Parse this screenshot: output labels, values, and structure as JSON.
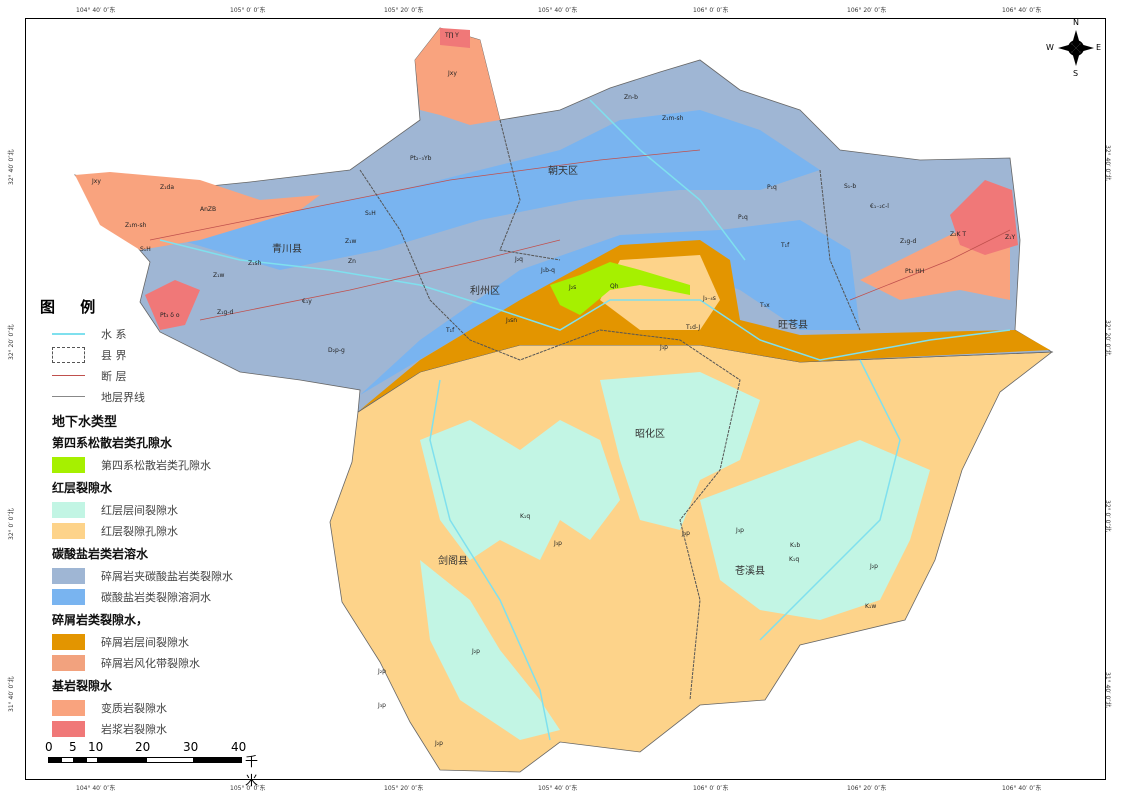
{
  "coords": {
    "longitudes": [
      "104° 40′ 0″东",
      "105° 0′ 0″东",
      "105° 20′ 0″东",
      "105° 40′ 0″东",
      "106° 0′ 0″东",
      "106° 20′ 0″东",
      "106° 40′ 0″东"
    ],
    "latitudes": [
      "32° 40′ 0″北",
      "32° 20′ 0″北",
      "32° 0′ 0″北",
      "31° 40′ 0″北"
    ]
  },
  "places": [
    "青川县",
    "朝天区",
    "利州区",
    "旺苍县",
    "昭化区",
    "剑阁县",
    "苍溪县"
  ],
  "geo_labels": [
    "T∏ Y",
    "Jxy",
    "Pt₂₋₃Yb",
    "Jxy",
    "Z₁da",
    "AnZB",
    "Z₁m-sh",
    "S₁H",
    "S₁H",
    "Z₁w",
    "Zn",
    "Z₁sh",
    "Z₁w",
    "Z₁g-d",
    "Pt₃ δ o",
    "€₁y",
    "D₂p-g",
    "Zn-b",
    "Z₁m-sh",
    "P₁q",
    "P₁q",
    "S₁-b",
    "€₁₋₂c-l",
    "Z₁g-d",
    "Z₂K T",
    "Z₁Y",
    "Pt₃ HH",
    "T₁f",
    "T₁f",
    "J₂q",
    "J₁b-q",
    "J₂s",
    "Qh",
    "J₃₋₄s",
    "T₃x",
    "T₁d-J",
    "J₃sn",
    "J₃p",
    "K₁q",
    "J₃p",
    "J₃p",
    "K₁b",
    "K₁q",
    "J₃p",
    "K₁w",
    "J₂p",
    "J₂p",
    "J₂p",
    "J₃p",
    "J₂p"
  ],
  "compass": {
    "n": "N",
    "s": "S",
    "e": "E",
    "w": "W"
  },
  "legend": {
    "title": "图 例",
    "lines": [
      {
        "label": "水 系",
        "color": "#7fe0ee"
      },
      {
        "label": "县 界",
        "color": "#555"
      },
      {
        "label": "断 层",
        "color": "#c0504d"
      },
      {
        "label": "地层界线",
        "color": "#888"
      }
    ],
    "groundwater_title": "地下水类型",
    "groups": [
      {
        "title": "第四系松散岩类孔隙水",
        "items": [
          {
            "label": "第四系松散岩类孔隙水",
            "color": "#a6f000"
          }
        ]
      },
      {
        "title": "红层裂隙水",
        "items": [
          {
            "label": "红层层间裂隙水",
            "color": "#c2f5e4"
          },
          {
            "label": "红层裂隙孔隙水",
            "color": "#fdd38a"
          }
        ]
      },
      {
        "title": "碳酸盐岩类岩溶水",
        "items": [
          {
            "label": "碎屑岩夹碳酸盐岩类裂隙水",
            "color": "#9fb6d4"
          },
          {
            "label": "碳酸盐岩类裂隙溶洞水",
            "color": "#79b4f0"
          }
        ]
      },
      {
        "title": "碎屑岩类裂隙水，",
        "items": [
          {
            "label": "碎屑岩层间裂隙水",
            "color": "#e39500"
          },
          {
            "label": "碎屑岩风化带裂隙水",
            "color": "#f2a27e"
          }
        ]
      },
      {
        "title": "基岩裂隙水",
        "items": [
          {
            "label": "变质岩裂隙水",
            "color": "#f9a37e"
          },
          {
            "label": "岩浆岩裂隙水",
            "color": "#f07878"
          }
        ]
      }
    ]
  },
  "scale": {
    "ticks": [
      "0",
      "5",
      "10",
      "20",
      "30",
      "40"
    ],
    "unit": "千米"
  }
}
